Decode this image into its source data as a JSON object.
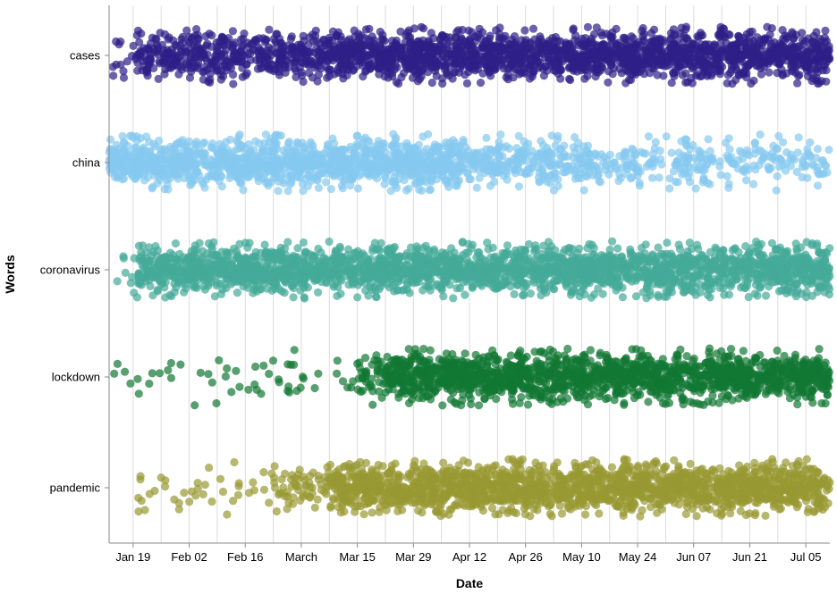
{
  "chart_data": {
    "type": "scatter",
    "title": "",
    "xlabel": "Date",
    "ylabel": "Words",
    "x_range": [
      "2020-01-13",
      "2020-07-11"
    ],
    "x_ticks": [
      {
        "date": "2020-01-19",
        "label": "Jan 19"
      },
      {
        "date": "2020-02-02",
        "label": "Feb 02"
      },
      {
        "date": "2020-02-16",
        "label": "Feb 16"
      },
      {
        "date": "2020-03-01",
        "label": "March"
      },
      {
        "date": "2020-03-15",
        "label": "Mar 15"
      },
      {
        "date": "2020-03-29",
        "label": "Mar 29"
      },
      {
        "date": "2020-04-12",
        "label": "Apr 12"
      },
      {
        "date": "2020-04-26",
        "label": "Apr 26"
      },
      {
        "date": "2020-05-10",
        "label": "May 10"
      },
      {
        "date": "2020-05-24",
        "label": "May 24"
      },
      {
        "date": "2020-06-07",
        "label": "Jun 07"
      },
      {
        "date": "2020-06-21",
        "label": "Jun 21"
      },
      {
        "date": "2020-07-05",
        "label": "Jul 05"
      }
    ],
    "grid": "vertical weekly",
    "jitter": "vertical, within each word row",
    "categories": [
      "cases",
      "china",
      "coronavirus",
      "lockdown",
      "pandemic"
    ],
    "series": [
      {
        "name": "cases",
        "color": "#2e1f87",
        "intensity": [
          {
            "start": "2020-01-13",
            "end": "2020-01-20",
            "density": 0.15
          },
          {
            "start": "2020-01-20",
            "end": "2020-03-01",
            "density": 0.65
          },
          {
            "start": "2020-03-01",
            "end": "2020-07-11",
            "density": 1.0
          }
        ]
      },
      {
        "name": "china",
        "color": "#86c9ef",
        "intensity": [
          {
            "start": "2020-01-13",
            "end": "2020-04-10",
            "density": 1.0
          },
          {
            "start": "2020-04-10",
            "end": "2020-05-15",
            "density": 0.55
          },
          {
            "start": "2020-05-15",
            "end": "2020-07-11",
            "density": 0.3
          }
        ]
      },
      {
        "name": "coronavirus",
        "color": "#44aa99",
        "intensity": [
          {
            "start": "2020-01-13",
            "end": "2020-01-20",
            "density": 0.08
          },
          {
            "start": "2020-01-20",
            "end": "2020-07-11",
            "density": 1.0
          }
        ]
      },
      {
        "name": "lockdown",
        "color": "#117733",
        "intensity": [
          {
            "start": "2020-01-13",
            "end": "2020-03-15",
            "density": 0.06
          },
          {
            "start": "2020-03-15",
            "end": "2020-03-22",
            "density": 0.4
          },
          {
            "start": "2020-03-22",
            "end": "2020-07-11",
            "density": 1.0
          }
        ]
      },
      {
        "name": "pandemic",
        "color": "#999933",
        "intensity": [
          {
            "start": "2020-01-20",
            "end": "2020-02-23",
            "density": 0.08
          },
          {
            "start": "2020-02-23",
            "end": "2020-03-08",
            "density": 0.3
          },
          {
            "start": "2020-03-08",
            "end": "2020-07-11",
            "density": 1.0
          }
        ]
      }
    ]
  }
}
